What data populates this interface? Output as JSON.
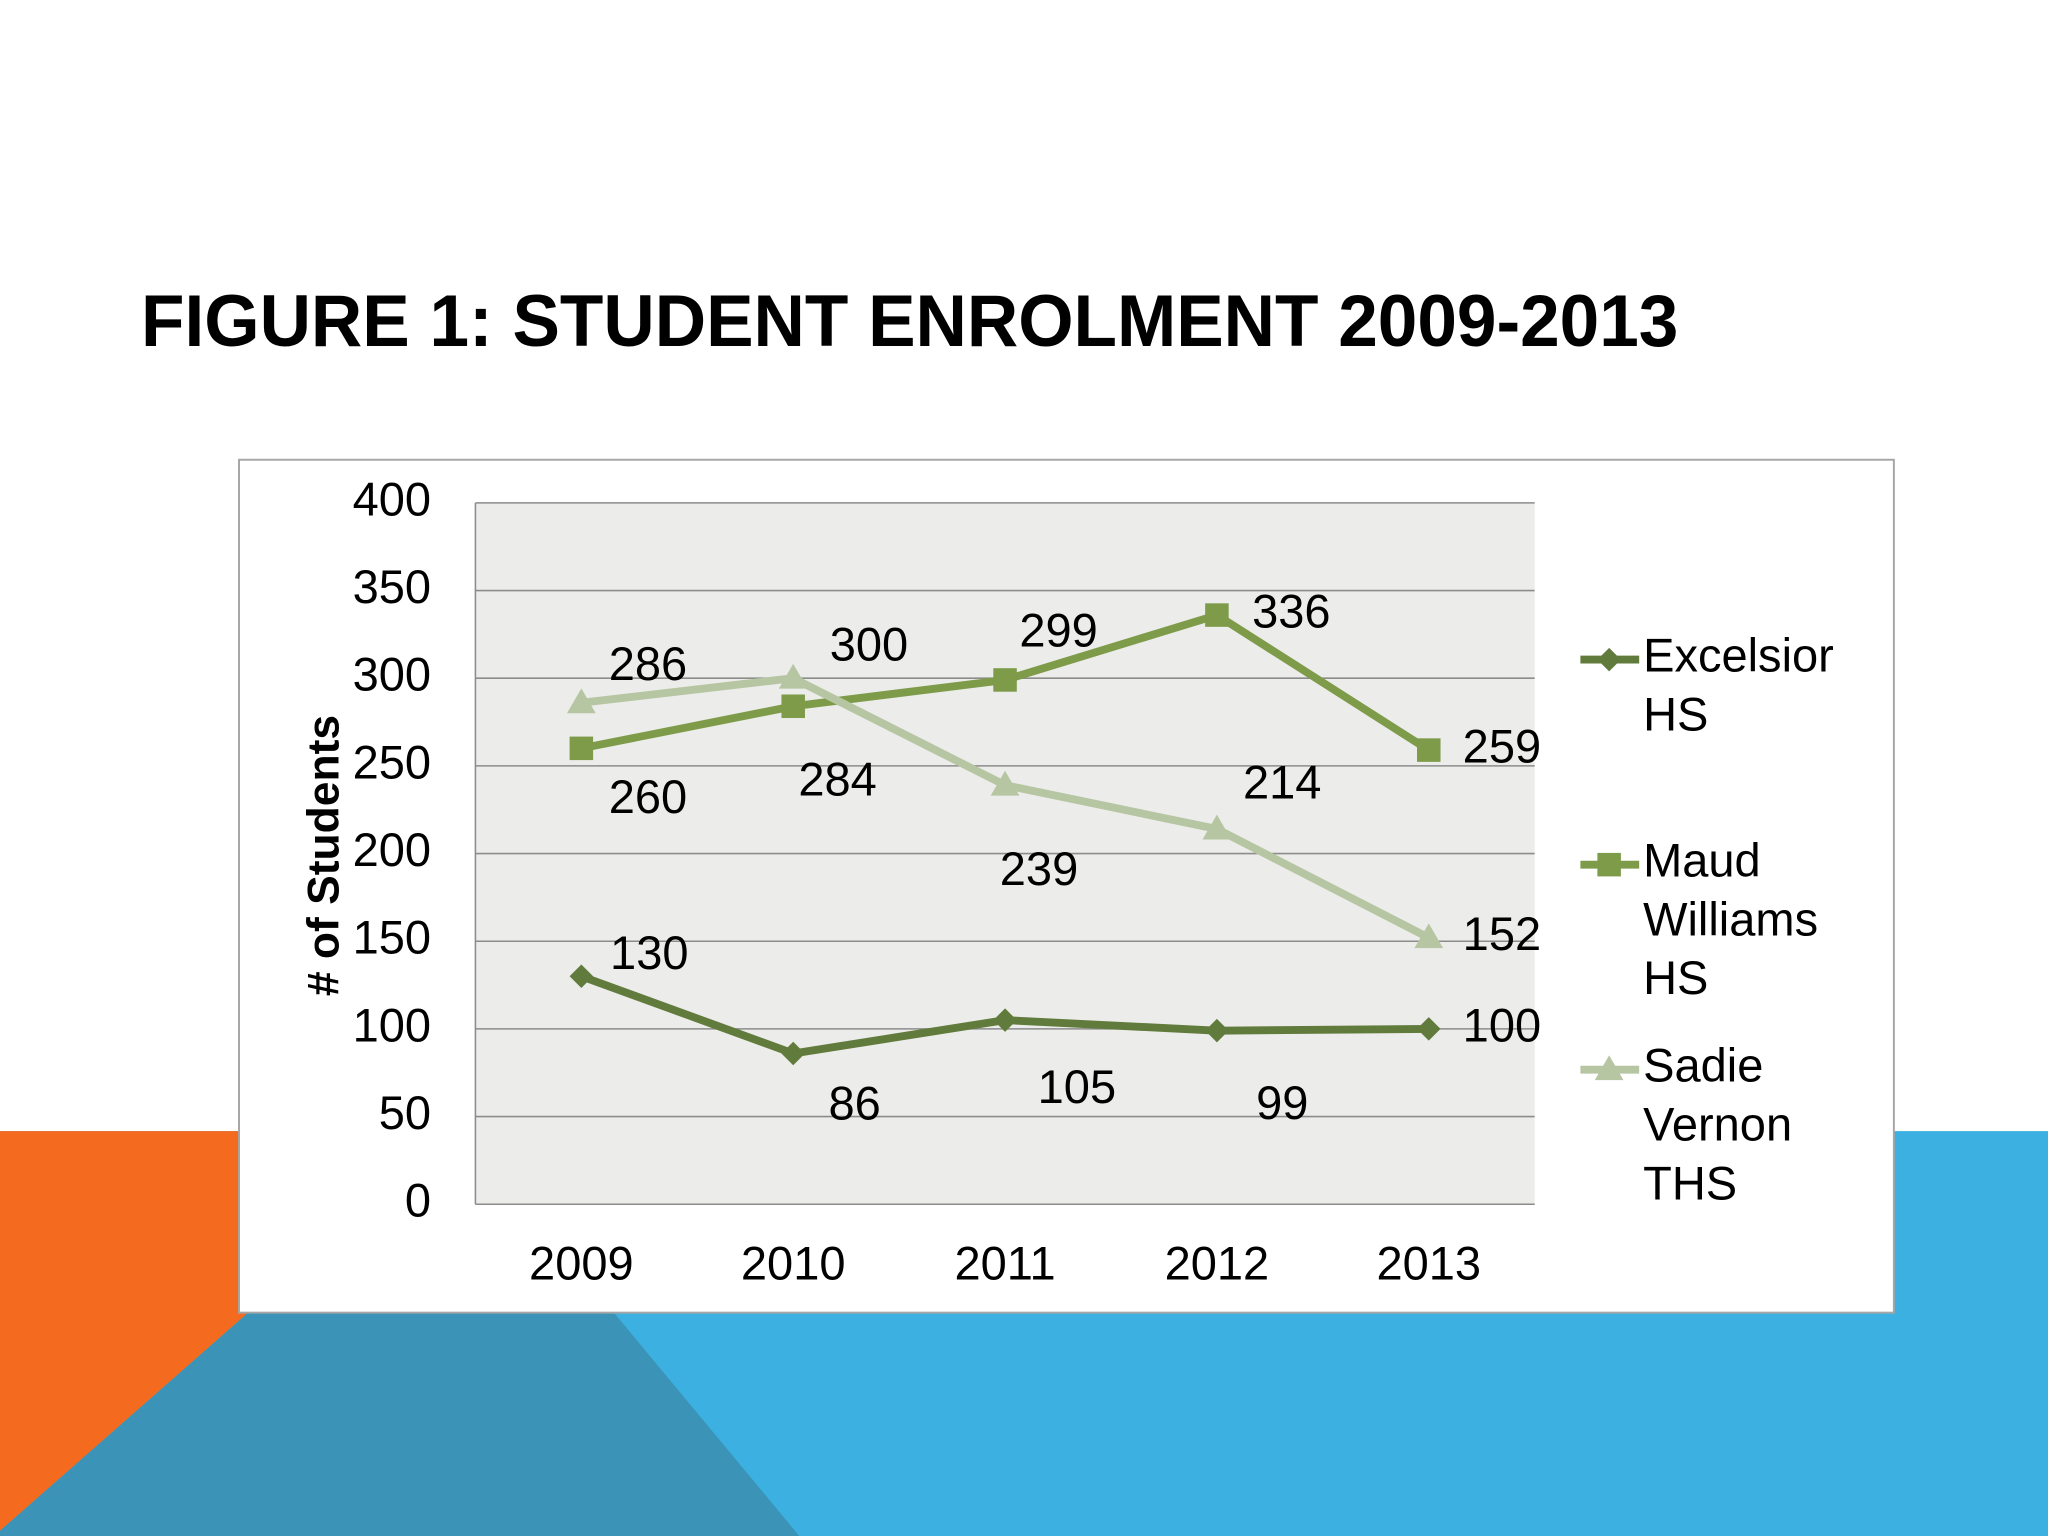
{
  "chart_data": {
    "type": "line",
    "title": "FIGURE 1: STUDENT ENROLMENT 2009-2013",
    "y_label": "# of Students",
    "categories": [
      "2009",
      "2010",
      "2011",
      "2012",
      "2013"
    ],
    "series": [
      {
        "name": "Excelsior HS",
        "color": "#617b3c",
        "marker": "diamond",
        "values": [
          130,
          86,
          105,
          99,
          100
        ]
      },
      {
        "name": "Maud Williams HS",
        "color": "#7d9b48",
        "marker": "square",
        "values": [
          260,
          284,
          299,
          336,
          259
        ]
      },
      {
        "name": "Sadie Vernon THS",
        "color": "#b6c5a2",
        "marker": "triangle",
        "values": [
          286,
          300,
          239,
          214,
          152
        ]
      }
    ],
    "ylim": [
      0,
      400
    ],
    "yticks": [
      0,
      50,
      100,
      150,
      200,
      250,
      300,
      350,
      400
    ],
    "grid": true,
    "legend": "right"
  }
}
